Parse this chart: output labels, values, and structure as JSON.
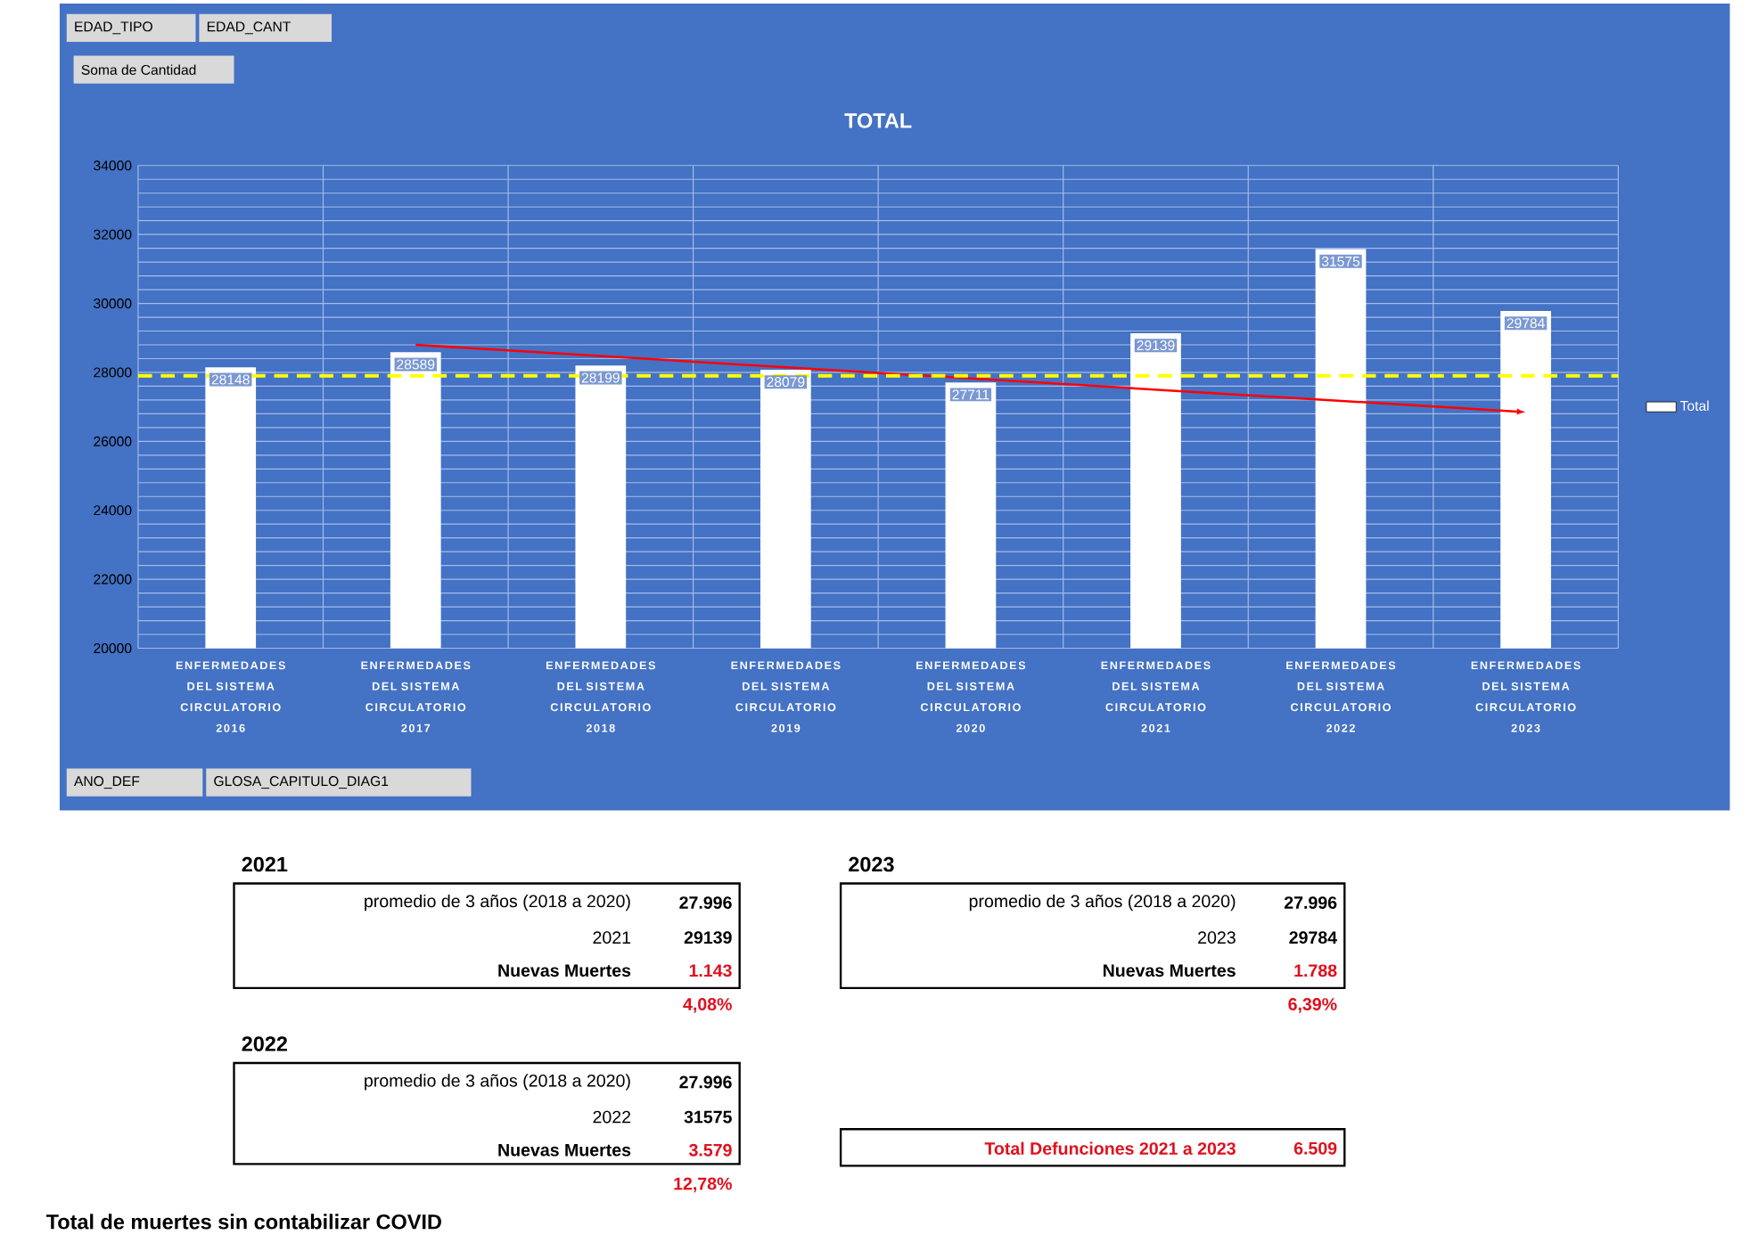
{
  "chart_data": {
    "type": "bar",
    "title": "TOTAL",
    "categories": [
      "ENFERMEDADES DEL SISTEMA CIRCULATORIO 2016",
      "ENFERMEDADES DEL SISTEMA CIRCULATORIO 2017",
      "ENFERMEDADES DEL SISTEMA CIRCULATORIO 2018",
      "ENFERMEDADES DEL SISTEMA CIRCULATORIO 2019",
      "ENFERMEDADES DEL SISTEMA CIRCULATORIO 2020",
      "ENFERMEDADES DEL SISTEMA CIRCULATORIO 2021",
      "ENFERMEDADES DEL SISTEMA CIRCULATORIO 2022",
      "ENFERMEDADES DEL SISTEMA CIRCULATORIO 2023"
    ],
    "series": [
      {
        "name": "Total",
        "color": "#ffffff",
        "values": [
          28148,
          28589,
          28199,
          28079,
          27711,
          29139,
          31575,
          29784
        ],
        "value_labels": [
          "28148",
          "28589",
          "28199",
          "28079",
          "27711",
          "29139",
          "31575",
          "29784"
        ]
      },
      {
        "type": "line",
        "color": "#ff0000",
        "x": [
          "ENFERMEDADES DEL SISTEMA CIRCULATORIO 2017",
          "ENFERMEDADES DEL SISTEMA CIRCULATORIO 2023"
        ],
        "values": [
          28800,
          26850
        ]
      }
    ],
    "ylim": [
      20000,
      34000
    ],
    "yticks": [
      20000,
      {
        "value": 20400,
        "label": null
      },
      {
        "value": 20800,
        "label": null
      },
      {
        "value": 21200,
        "label": null
      },
      {
        "value": 21600,
        "label": null
      },
      22000,
      {
        "value": 22400,
        "label": null
      },
      {
        "value": 22800,
        "label": null
      },
      {
        "value": 23200,
        "label": null
      },
      {
        "value": 23600,
        "label": null
      },
      24000,
      {
        "value": 24400,
        "label": null
      },
      {
        "value": 24800,
        "label": null
      },
      {
        "value": 25200,
        "label": null
      },
      {
        "value": 25600,
        "label": null
      },
      26000,
      {
        "value": 26400,
        "label": null
      },
      {
        "value": 26800,
        "label": null
      },
      {
        "value": 27200,
        "label": null
      },
      {
        "value": 27600,
        "label": null
      },
      28000,
      {
        "value": 28400,
        "label": null
      },
      {
        "value": 28800,
        "label": null
      },
      {
        "value": 29200,
        "label": null
      },
      {
        "value": 29600,
        "label": null
      },
      30000,
      {
        "value": 30400,
        "label": null
      },
      {
        "value": 30800,
        "label": null
      },
      {
        "value": 31200,
        "label": null
      },
      {
        "value": 31600,
        "label": null
      },
      32000,
      {
        "value": 32400,
        "label": null
      },
      {
        "value": 32800,
        "label": null
      },
      {
        "value": 33200,
        "label": null
      },
      {
        "value": 33600,
        "label": null
      },
      34000
    ],
    "grid": true,
    "legend": "right",
    "ref_lines": [
      {
        "axis": "y",
        "value": 27900,
        "color": "#ffff00",
        "line_style": "dashed"
      }
    ],
    "annotations": [
      "EDAD_TIPO",
      "EDAD_CANT",
      "Soma de Cantidad",
      "ANO_DEF",
      "GLOSA_CAPITULO_DIAG1",
      "2021",
      "promedio de 3 años (2018 a 2020)",
      "27.996",
      "2021",
      "29139",
      "Nuevas Muertes",
      "1.143",
      "4,08%",
      "2022",
      "promedio de 3 años (2018 a 2020)",
      "27.996",
      "2022",
      "31575",
      "Nuevas Muertes",
      "3.579",
      "12,78%",
      "2023",
      "promedio de 3 años (2018 a 2020)",
      "27.996",
      "2023",
      "29784",
      "Nuevas Muertes",
      "1.788",
      "6,39%",
      "Total Defunciones 2021 a 2023",
      "6.509",
      "Total de muertes sin contabilizar COVID"
    ]
  }
}
